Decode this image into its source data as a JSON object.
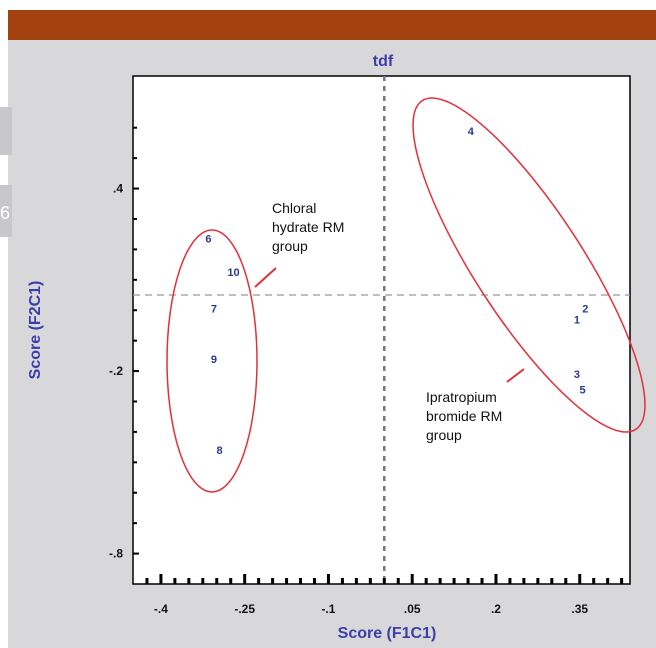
{
  "side_glyph": "6",
  "chart_data": {
    "type": "scatter",
    "title": "tdf",
    "xlabel": "Score (F1C1)",
    "ylabel": "Score (F2C1)",
    "xlim": [
      -0.45,
      0.44
    ],
    "ylim": [
      -0.9,
      0.77
    ],
    "x_ticks": [
      {
        "value": -0.4,
        "label": "-.4"
      },
      {
        "value": -0.25,
        "label": "-.25"
      },
      {
        "value": -0.1,
        "label": "-.1"
      },
      {
        "value": 0.05,
        "label": ".05"
      },
      {
        "value": 0.2,
        "label": ".2"
      },
      {
        "value": 0.35,
        "label": ".35"
      }
    ],
    "y_ticks": [
      {
        "value": 0.4,
        "label": ".4"
      },
      {
        "value": -0.2,
        "label": "-.2"
      },
      {
        "value": -0.8,
        "label": "-.8"
      }
    ],
    "points": [
      {
        "label": "1",
        "x": 0.345,
        "y": -0.03
      },
      {
        "label": "2",
        "x": 0.36,
        "y": 0.005
      },
      {
        "label": "3",
        "x": 0.345,
        "y": -0.21
      },
      {
        "label": "4",
        "x": 0.155,
        "y": 0.59
      },
      {
        "label": "5",
        "x": 0.355,
        "y": -0.26
      },
      {
        "label": "6",
        "x": -0.315,
        "y": 0.235
      },
      {
        "label": "7",
        "x": -0.305,
        "y": 0.005
      },
      {
        "label": "8",
        "x": -0.295,
        "y": -0.46
      },
      {
        "label": "9",
        "x": -0.305,
        "y": -0.16
      },
      {
        "label": "10",
        "x": -0.27,
        "y": 0.125
      }
    ],
    "reference_lines": {
      "x": 0.0,
      "y": 0.05
    },
    "grid": false,
    "point_color": "#2a3a8c",
    "axis_label_color": "#3a3ea8",
    "group_color": "#e0303a",
    "annotations": [
      {
        "name": "chloral-hydrate-group",
        "lines": [
          "Chloral",
          "hydrate RM",
          "group"
        ]
      },
      {
        "name": "ipratropium-group",
        "lines": [
          "Ipratropium",
          "bromide RM",
          "group"
        ]
      }
    ]
  }
}
